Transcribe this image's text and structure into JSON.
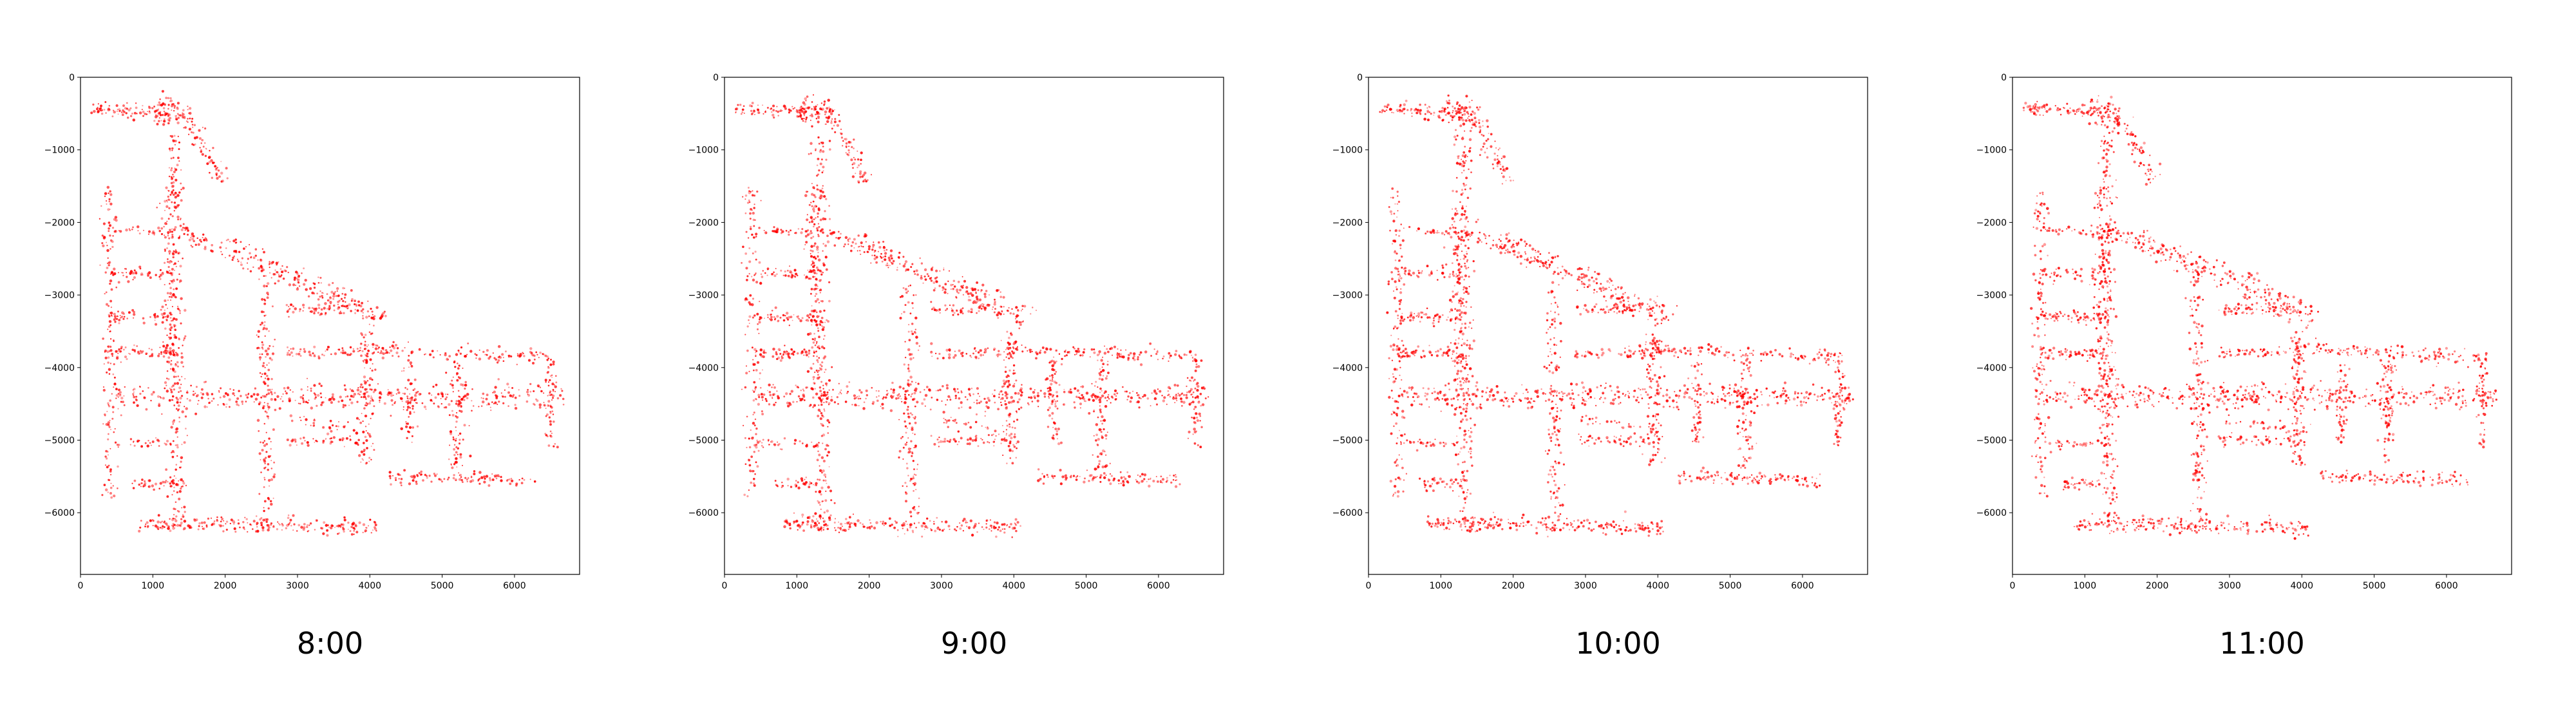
{
  "colors": {
    "points": "#ff0000",
    "axes": "#000000",
    "background": "#ffffff"
  },
  "chart_data": [
    {
      "type": "scatter",
      "caption": "8:00",
      "xlim": [
        0,
        6900
      ],
      "ylim": [
        -6850,
        0
      ],
      "xticks": [
        "0",
        "1000",
        "2000",
        "3000",
        "4000",
        "5000",
        "6000"
      ],
      "yticks": [
        "0",
        "−1000",
        "−2000",
        "−3000",
        "−4000",
        "−5000",
        "−6000"
      ],
      "grid": false,
      "seed": 11
    },
    {
      "type": "scatter",
      "caption": "9:00",
      "xlim": [
        0,
        6900
      ],
      "ylim": [
        -6850,
        0
      ],
      "xticks": [
        "0",
        "1000",
        "2000",
        "3000",
        "4000",
        "5000",
        "6000"
      ],
      "yticks": [
        "0",
        "−1000",
        "−2000",
        "−3000",
        "−4000",
        "−5000",
        "−6000"
      ],
      "grid": false,
      "seed": 23
    },
    {
      "type": "scatter",
      "caption": "10:00",
      "xlim": [
        0,
        6900
      ],
      "ylim": [
        -6850,
        0
      ],
      "xticks": [
        "0",
        "1000",
        "2000",
        "3000",
        "4000",
        "5000",
        "6000"
      ],
      "yticks": [
        "0",
        "−1000",
        "−2000",
        "−3000",
        "−4000",
        "−5000",
        "−6000"
      ],
      "grid": false,
      "seed": 37
    },
    {
      "type": "scatter",
      "caption": "11:00",
      "xlim": [
        0,
        6900
      ],
      "ylim": [
        -6850,
        0
      ],
      "xticks": [
        "0",
        "1000",
        "2000",
        "3000",
        "4000",
        "5000",
        "6000"
      ],
      "yticks": [
        "0",
        "−1000",
        "−2000",
        "−3000",
        "−4000",
        "−5000",
        "−6000"
      ],
      "grid": false,
      "seed": 53
    }
  ]
}
